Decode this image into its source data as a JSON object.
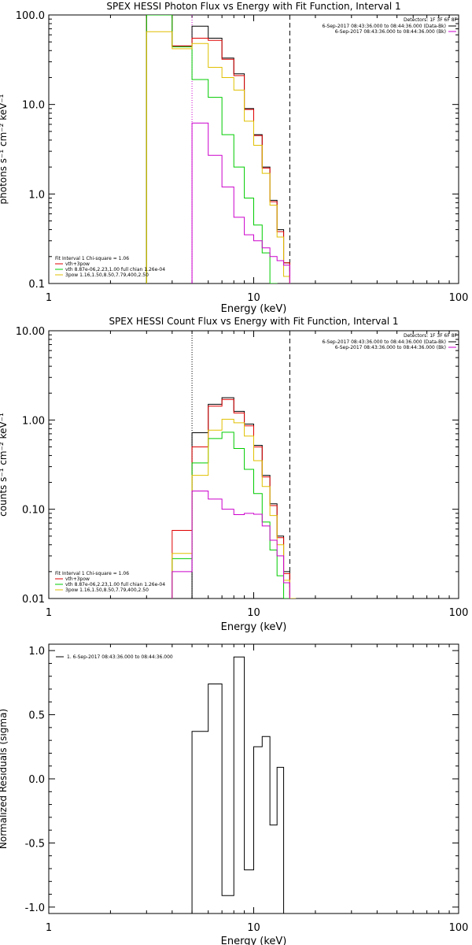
{
  "chart_data": [
    {
      "type": "step",
      "title": "SPEX HESSI Photon Flux vs Energy with Fit Function, Interval 1",
      "xlabel": "Energy (keV)",
      "ylabel": "photons s⁻¹ cm⁻² keV⁻¹",
      "xscale": "log",
      "yscale": "log",
      "xlim": [
        1,
        100
      ],
      "ylim": [
        0.1,
        100
      ],
      "xticks": [
        {
          "v": 1,
          "label": "1"
        },
        {
          "v": 10,
          "label": "10"
        },
        {
          "v": 100,
          "label": "100"
        }
      ],
      "yticks": [
        {
          "v": 0.1,
          "label": "0.1"
        },
        {
          "v": 1,
          "label": "1.0"
        },
        {
          "v": 10,
          "label": "10.0"
        },
        {
          "v": 100,
          "label": "100.0"
        }
      ],
      "vlines": [
        {
          "x": 5.0,
          "style": "dotted",
          "color": "#cc00cc"
        },
        {
          "x": 15.0,
          "style": "dashed",
          "color": "#000000"
        }
      ],
      "legend_top_right": {
        "title": "Detectors: 1F 3F 6F 8F",
        "entries": [
          {
            "text": "6-Sep-2017 08:43:36.000 to 08:44:36.000 (Data-Bk)",
            "color": "#000000"
          },
          {
            "text": "6-Sep-2017 08:43:36.000 to 08:44:36.000 (Bk)",
            "color": "#cc00cc"
          }
        ]
      },
      "legend_bottom_left": {
        "title": "Fit Interval 1    Chi-square = 1.06",
        "entries": [
          {
            "text": "vth+3pow",
            "color": "#e00000"
          },
          {
            "text": "vth 8.87e-06,2.23,1.00  full chian 1.26e-04",
            "color": "#00cc00"
          },
          {
            "text": "3pow 1.16,1.50,8.50,7.79,400,2.50",
            "color": "#e0c000"
          }
        ]
      },
      "edges": [
        3.0,
        4.0,
        5.0,
        6.0,
        7.0,
        8.0,
        9.0,
        10.0,
        11.0,
        12.0,
        13.0,
        14.0,
        15.0,
        16.0,
        17.0
      ],
      "series": [
        {
          "key": "data",
          "color": "#000000",
          "values": [
            100,
            45,
            75,
            55,
            33,
            22,
            9,
            4.6,
            2.0,
            0.85,
            0.4,
            0.17
          ]
        },
        {
          "key": "total",
          "color": "#e00000",
          "values": [
            100,
            45,
            55,
            52,
            32,
            21,
            8.8,
            4.5,
            1.95,
            0.82,
            0.38,
            0.17
          ]
        },
        {
          "key": "thermal",
          "color": "#00cc00",
          "values": [
            100,
            44,
            19,
            12,
            4.6,
            2.0,
            0.9,
            0.45,
            0.22,
            0.1
          ]
        },
        {
          "key": "powerlaw",
          "color": "#e0c000",
          "values": [
            65,
            42,
            48,
            26,
            20,
            14.5,
            6.5,
            3.5,
            1.7,
            0.75,
            0.33,
            0.12
          ]
        },
        {
          "key": "background",
          "color": "#cc00cc",
          "values": [
            null,
            null,
            6.2,
            2.7,
            1.2,
            0.55,
            0.35,
            0.3,
            0.25,
            0.2,
            0.18,
            0.16
          ]
        }
      ]
    },
    {
      "type": "step",
      "title": "SPEX HESSI Count Flux vs Energy with Fit Function, Interval 1",
      "xlabel": "Energy (keV)",
      "ylabel": "counts s⁻¹ cm⁻² keV⁻¹",
      "xscale": "log",
      "yscale": "log",
      "xlim": [
        1,
        100
      ],
      "ylim": [
        0.01,
        10
      ],
      "xticks": [
        {
          "v": 1,
          "label": "1"
        },
        {
          "v": 10,
          "label": "10"
        },
        {
          "v": 100,
          "label": "100"
        }
      ],
      "yticks": [
        {
          "v": 0.01,
          "label": "0.01"
        },
        {
          "v": 0.1,
          "label": "0.10"
        },
        {
          "v": 1,
          "label": "1.00"
        },
        {
          "v": 10,
          "label": "10.00"
        }
      ],
      "vlines": [
        {
          "x": 5.0,
          "style": "dotted",
          "color": "#000000"
        },
        {
          "x": 15.0,
          "style": "dashed",
          "color": "#000000"
        }
      ],
      "legend_top_right": {
        "title": "Detectors: 1F 3F 6F 8F",
        "entries": [
          {
            "text": "6-Sep-2017 08:43:36.000 to 08:44:36.000 (Data-Bk)",
            "color": "#000000"
          },
          {
            "text": "6-Sep-2017 08:43:36.000 to 08:44:36.000 (Bk)",
            "color": "#cc00cc"
          }
        ]
      },
      "legend_bottom_left": {
        "title": "Fit Interval 1    Chi-square = 1.06",
        "entries": [
          {
            "text": "vth+3pow",
            "color": "#e00000"
          },
          {
            "text": "vth 8.87e-06,2.23,1.00  full chian 1.26e-04",
            "color": "#00cc00"
          },
          {
            "text": "3pow 1.16,1.50,8.50,7.79,400,2.50",
            "color": "#e0c000"
          }
        ]
      },
      "edges": [
        4.0,
        5.0,
        6.0,
        7.0,
        8.0,
        9.0,
        10.0,
        11.0,
        12.0,
        13.0,
        14.0,
        15.0,
        16.0,
        17.0,
        18.0
      ],
      "series": [
        {
          "key": "data",
          "color": "#000000",
          "values": [
            null,
            0.72,
            1.5,
            1.78,
            1.25,
            0.9,
            0.52,
            0.24,
            0.115,
            0.05,
            0.02
          ]
        },
        {
          "key": "total",
          "color": "#e00000",
          "values": [
            0.058,
            0.5,
            1.43,
            1.7,
            1.2,
            0.86,
            0.5,
            0.23,
            0.11,
            0.048,
            0.019
          ]
        },
        {
          "key": "thermal",
          "color": "#00cc00",
          "values": [
            0.028,
            0.33,
            0.62,
            0.73,
            0.48,
            0.28,
            0.15,
            0.072,
            0.035,
            0.018,
            0.01
          ]
        },
        {
          "key": "powerlaw",
          "color": "#e0c000",
          "values": [
            0.032,
            0.24,
            0.77,
            1.02,
            0.93,
            0.66,
            0.35,
            0.18,
            0.085,
            0.04,
            0.016,
            0.01
          ]
        },
        {
          "key": "background",
          "color": "#cc00cc",
          "values": [
            0.02,
            0.16,
            0.13,
            0.1,
            0.087,
            0.09,
            0.088,
            0.065,
            0.045,
            0.03,
            0.015
          ]
        }
      ]
    },
    {
      "type": "step",
      "title": "",
      "xlabel": "Energy (keV)",
      "ylabel": "Normalized Residuals (sigma)",
      "xscale": "log",
      "yscale": "linear",
      "xlim": [
        1,
        100
      ],
      "ylim": [
        -1.05,
        1.05
      ],
      "xticks": [
        {
          "v": 1,
          "label": "1"
        },
        {
          "v": 10,
          "label": "10"
        },
        {
          "v": 100,
          "label": "100"
        }
      ],
      "yticks": [
        {
          "v": -1.0,
          "label": "-1.0"
        },
        {
          "v": -0.5,
          "label": "-0.5"
        },
        {
          "v": 0.0,
          "label": "0.0"
        },
        {
          "v": 0.5,
          "label": "0.5"
        },
        {
          "v": 1.0,
          "label": "1.0"
        }
      ],
      "legend_top_left": {
        "entries": [
          {
            "text": "1.  6-Sep-2017 08:43:36.000 to 08:44:36.000",
            "color": "#000000"
          }
        ]
      },
      "edges": [
        5.0,
        6.0,
        7.0,
        8.0,
        9.0,
        10.0,
        11.0,
        12.0,
        13.0,
        14.0,
        15.0
      ],
      "series": [
        {
          "key": "residuals",
          "color": "#000000",
          "values": [
            0.37,
            0.74,
            -0.91,
            0.95,
            -0.71,
            0.25,
            0.33,
            -0.36,
            0.09,
            -1.1
          ]
        }
      ]
    }
  ]
}
